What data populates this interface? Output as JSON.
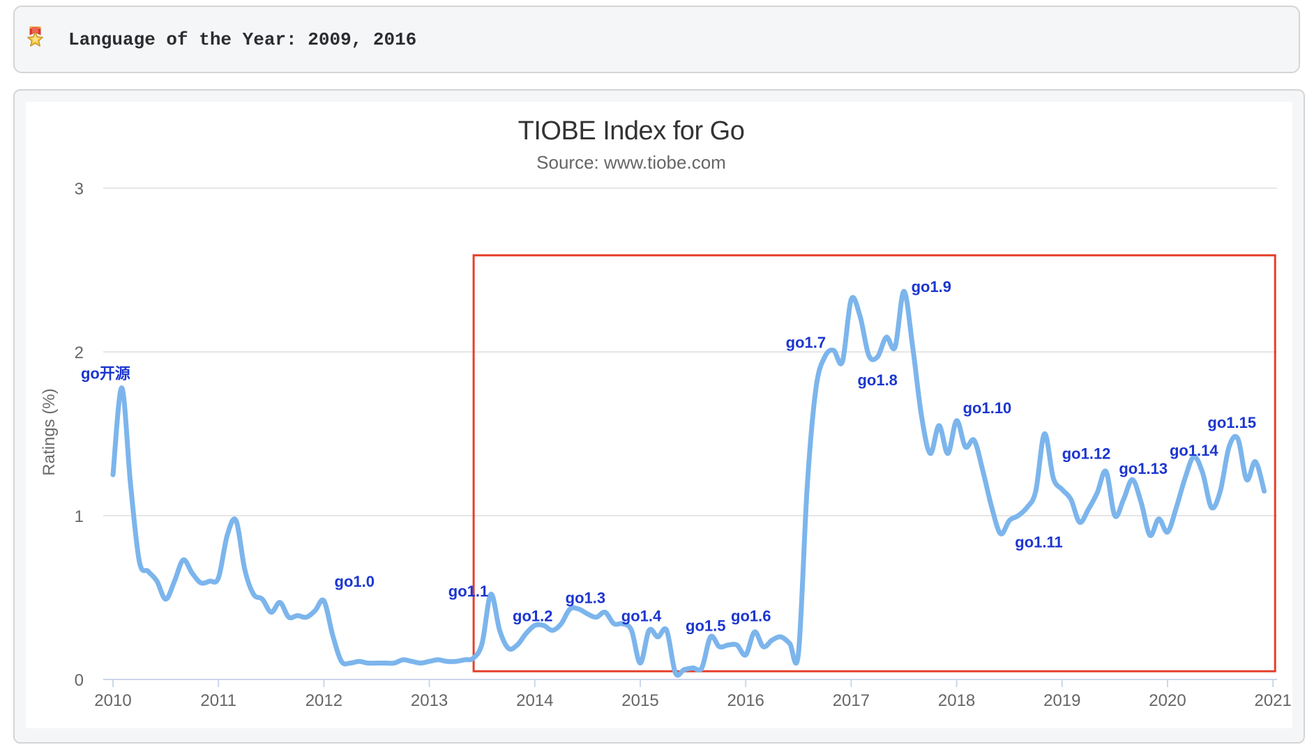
{
  "banner": {
    "icon": "medal-icon",
    "text": "Language of the Year: 2009, 2016"
  },
  "chart_data": {
    "type": "line",
    "title": "TIOBE Index for Go",
    "subtitle": "Source: www.tiobe.com",
    "ylabel": "Ratings (%)",
    "ylim": [
      0,
      3
    ],
    "yticks": [
      0,
      1,
      2,
      3
    ],
    "xticks": [
      2010,
      2011,
      2012,
      2013,
      2014,
      2015,
      2016,
      2017,
      2018,
      2019,
      2020,
      2021
    ],
    "x_start": 2010,
    "x_step_months": 1,
    "grid": true,
    "legend": false,
    "colors": {
      "line": "#7cb5ec",
      "annotation": "#1c36cf",
      "grid": "#e6e6e6",
      "axis": "#ccd6eb",
      "tick_text": "#666666",
      "title_text": "#333333",
      "subtitle_text": "#666666",
      "highlight": "#e5402c"
    },
    "values": [
      1.25,
      1.78,
      1.19,
      0.72,
      0.66,
      0.6,
      0.49,
      0.6,
      0.73,
      0.65,
      0.59,
      0.6,
      0.62,
      0.88,
      0.97,
      0.67,
      0.52,
      0.49,
      0.41,
      0.47,
      0.38,
      0.39,
      0.38,
      0.42,
      0.48,
      0.27,
      0.11,
      0.1,
      0.11,
      0.1,
      0.1,
      0.1,
      0.1,
      0.12,
      0.11,
      0.1,
      0.11,
      0.12,
      0.11,
      0.11,
      0.12,
      0.13,
      0.22,
      0.52,
      0.3,
      0.19,
      0.21,
      0.28,
      0.33,
      0.33,
      0.3,
      0.34,
      0.43,
      0.43,
      0.4,
      0.38,
      0.41,
      0.34,
      0.34,
      0.3,
      0.1,
      0.3,
      0.26,
      0.3,
      0.04,
      0.06,
      0.07,
      0.07,
      0.26,
      0.2,
      0.21,
      0.21,
      0.15,
      0.29,
      0.2,
      0.24,
      0.26,
      0.22,
      0.16,
      1.18,
      1.78,
      1.97,
      2.01,
      1.94,
      2.32,
      2.22,
      1.98,
      1.97,
      2.09,
      2.03,
      2.37,
      2.03,
      1.61,
      1.38,
      1.55,
      1.38,
      1.58,
      1.42,
      1.46,
      1.27,
      1.05,
      0.89,
      0.97,
      1.0,
      1.05,
      1.15,
      1.5,
      1.23,
      1.16,
      1.1,
      0.96,
      1.04,
      1.14,
      1.27,
      1.0,
      1.1,
      1.22,
      1.08,
      0.88,
      0.98,
      0.9,
      1.05,
      1.23,
      1.36,
      1.26,
      1.05,
      1.15,
      1.42,
      1.47,
      1.22,
      1.33,
      1.15
    ],
    "annotations": [
      {
        "label": "go开源",
        "x": 2009.93,
        "y": 1.87
      },
      {
        "label": "go1.0",
        "x": 2012.29,
        "y": 0.6
      },
      {
        "label": "go1.1",
        "x": 2013.37,
        "y": 0.54
      },
      {
        "label": "go1.2",
        "x": 2013.98,
        "y": 0.39
      },
      {
        "label": "go1.3",
        "x": 2014.48,
        "y": 0.5
      },
      {
        "label": "go1.4",
        "x": 2015.01,
        "y": 0.39
      },
      {
        "label": "go1.5",
        "x": 2015.62,
        "y": 0.33
      },
      {
        "label": "go1.6",
        "x": 2016.05,
        "y": 0.39
      },
      {
        "label": "go1.7",
        "x": 2016.57,
        "y": 2.06
      },
      {
        "label": "go1.8",
        "x": 2017.25,
        "y": 1.83
      },
      {
        "label": "go1.9",
        "x": 2017.76,
        "y": 2.4
      },
      {
        "label": "go1.10",
        "x": 2018.29,
        "y": 1.66
      },
      {
        "label": "go1.11",
        "x": 2018.78,
        "y": 0.84
      },
      {
        "label": "go1.12",
        "x": 2019.23,
        "y": 1.38
      },
      {
        "label": "go1.13",
        "x": 2019.77,
        "y": 1.29
      },
      {
        "label": "go1.14",
        "x": 2020.25,
        "y": 1.4
      },
      {
        "label": "go1.15",
        "x": 2020.61,
        "y": 1.57
      }
    ],
    "highlight_box": {
      "x1": 2013.42,
      "y1": 0.05,
      "x2": 2021.02,
      "y2": 2.59
    }
  }
}
